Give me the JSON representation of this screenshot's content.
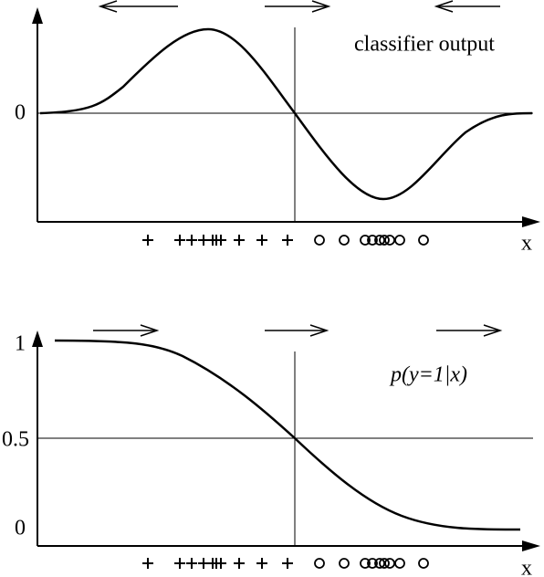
{
  "top_panel": {
    "label": "classifier output",
    "y_tick": "0",
    "x_label": "x"
  },
  "bottom_panel": {
    "label": "p(y=1|x)",
    "y_ticks": [
      "1",
      "0.5",
      "0"
    ],
    "x_label": "x"
  }
}
